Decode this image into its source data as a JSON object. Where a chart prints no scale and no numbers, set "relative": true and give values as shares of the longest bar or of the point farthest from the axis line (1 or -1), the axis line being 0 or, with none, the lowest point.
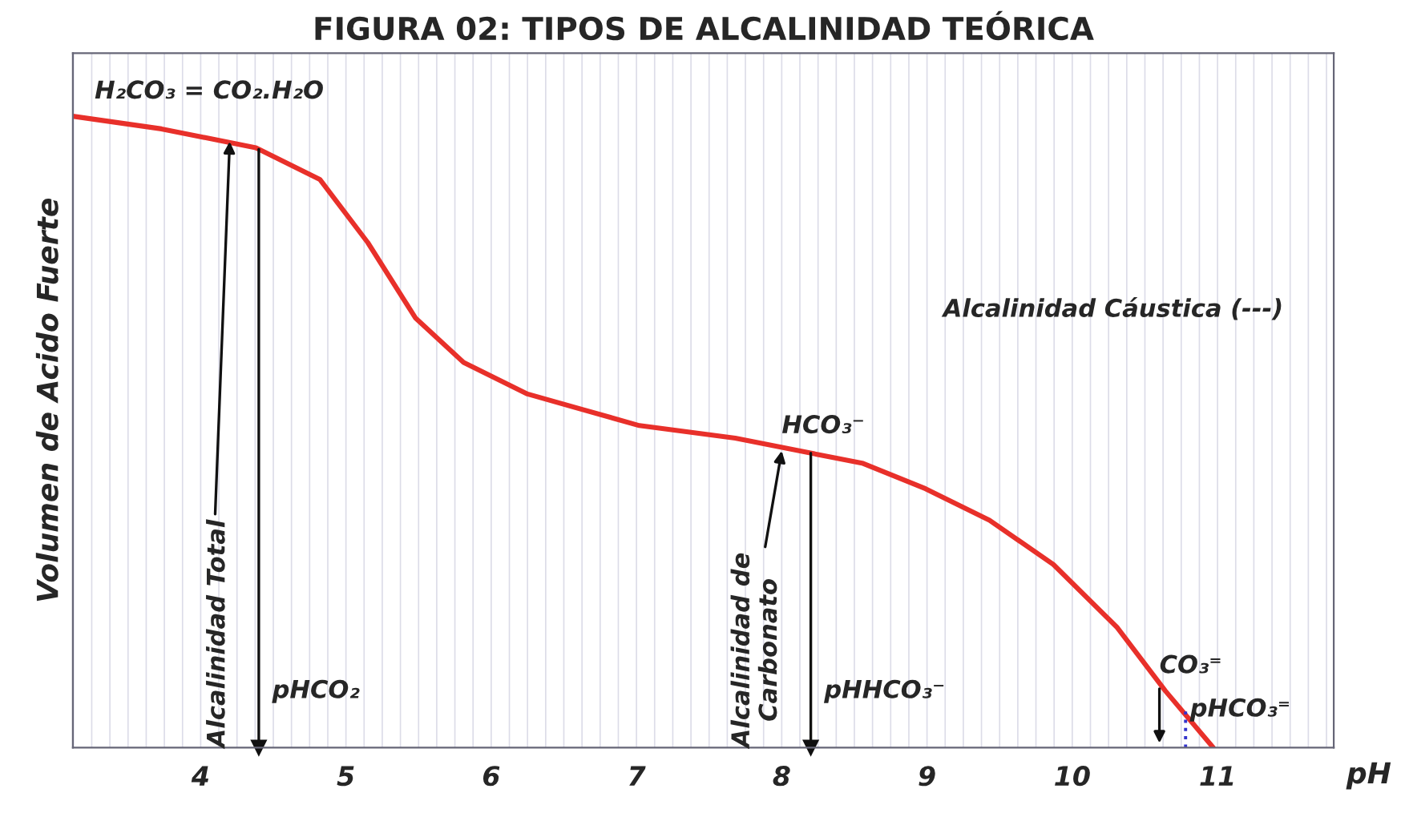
{
  "chart_data": {
    "type": "line",
    "title": "FIGURA 02: TIPOS DE ALCALINIDAD TEÓRICA",
    "xlabel": "pH",
    "ylabel": "Volumen de Acido Fuerte",
    "relative": true,
    "x": [
      3.12,
      3.73,
      4.38,
      4.82,
      5.15,
      5.48,
      5.81,
      6.25,
      7.02,
      7.68,
      8.12,
      8.56,
      8.99,
      9.43,
      9.87,
      10.31,
      10.64,
      10.97
    ],
    "series": [
      {
        "color": "#e8302a",
        "values": [
          1.0,
          0.98,
          0.95,
          0.9,
          0.8,
          0.68,
          0.61,
          0.56,
          0.51,
          0.49,
          0.47,
          0.45,
          0.41,
          0.36,
          0.29,
          0.19,
          0.09,
          0.0
        ]
      }
    ],
    "xlim": [
      3.12,
      11.8
    ],
    "xticks": [
      4,
      5,
      6,
      7,
      8,
      9,
      10,
      11
    ],
    "grid": true,
    "marker": "none",
    "line_style": "solid",
    "ref_lines": [
      {
        "axis": "x",
        "value": 4.4,
        "label": "pHCO₂"
      },
      {
        "axis": "x",
        "value": 8.2,
        "label": "pHHCO₃⁻"
      }
    ],
    "annotations": [
      {
        "text": "H₂CO₃ = CO₂.H₂O",
        "x": 3.12,
        "y": 1.0
      },
      {
        "text": "Alcalinidad Total",
        "x": 4.2,
        "y": 0.96
      },
      {
        "text": "HCO₃⁻",
        "x": 8.0,
        "y": 0.47
      },
      {
        "text": "Alcalinidad de\nCarbonato",
        "x": 8.0,
        "y": 0.47
      },
      {
        "text": "CO₃⁼",
        "x": 10.6,
        "y": 0.1
      },
      {
        "text": "pHCO₃⁼",
        "x": 10.78,
        "y": 0.06
      },
      "Alcalinidad Cáustica (---)"
    ]
  }
}
